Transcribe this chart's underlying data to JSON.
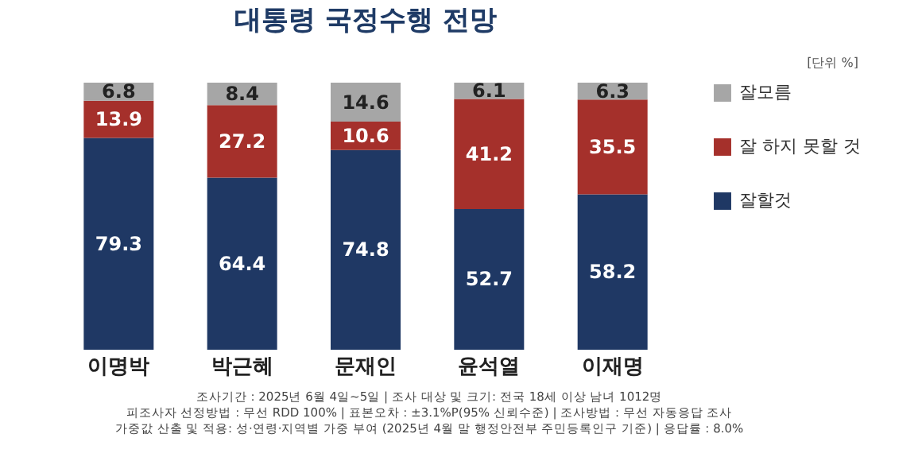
{
  "chart_data": {
    "type": "bar",
    "stacked": true,
    "title": "대통령 국정수행 전망",
    "categories": [
      "이명박",
      "박근혜",
      "문재인",
      "윤석열",
      "이재명"
    ],
    "series": [
      {
        "name": "잘할것",
        "color": "#1f3864",
        "values": [
          79.3,
          64.4,
          74.8,
          52.7,
          58.2
        ]
      },
      {
        "name": "잘 하지 못할 것",
        "color": "#a5302b",
        "values": [
          13.9,
          27.2,
          10.6,
          41.2,
          35.5
        ]
      },
      {
        "name": "잘모름",
        "color": "#a6a6a6",
        "values": [
          6.8,
          8.4,
          14.6,
          6.1,
          6.3
        ]
      }
    ],
    "data_labels": true,
    "legend": "right",
    "grid": false,
    "annotations": [
      "[단위 %]",
      "조사기간 : 2025년 6월 4일~5일 | 조사 대상 및 크기: 전국 18세 이상 남녀 1012명",
      "피조사자 선정방법 : 무선 RDD 100% | 표본오차 : ±3.1%P(95% 신뢰수준) | 조사방법 : 무선 자동응답 조사",
      "가중값 산출 및 적용: 성·연령·지역별 가중 부여 (2025년 4월 말 행정안전부 주민등록인구 기준) | 응답률 : 8.0%"
    ]
  }
}
